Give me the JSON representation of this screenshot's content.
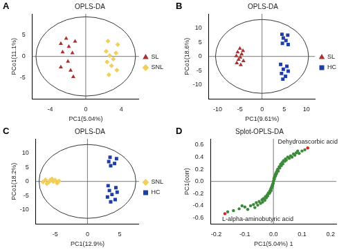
{
  "chart_data": [
    {
      "panel": "A",
      "type": "scatter",
      "title": "OPLS-DA",
      "x_label": "PC1(5.04%)",
      "y_label": "PCo1(11.1%)",
      "xlim": [
        -6,
        6
      ],
      "ylim": [
        -10,
        10
      ],
      "xticks": [
        -4,
        0,
        4
      ],
      "yticks": [
        -5,
        0,
        5
      ],
      "legend": "right",
      "ellipse": {
        "center": [
          0,
          0
        ],
        "x_radius": 5.6,
        "y_radius": 9.3
      },
      "reference_lines": {
        "x": 0,
        "y": 0
      },
      "series": [
        {
          "name": "SL",
          "color": "#a83232",
          "marker": "triangle",
          "x": [
            -2.2,
            -1.2,
            -2.8,
            -1.9,
            -2.6,
            -1.5,
            -2.0,
            -2.8,
            -1.7,
            -1.4
          ],
          "values": [
            4.2,
            3.5,
            3.0,
            2.3,
            1.0,
            0.8,
            -1.2,
            -2.5,
            -3.3,
            -4.8
          ]
        },
        {
          "name": "SNL",
          "color": "#f2cf5b",
          "marker": "diamond",
          "x": [
            2.5,
            3.6,
            2.3,
            3.4,
            2.7,
            3.1,
            2.4,
            2.9,
            3.5,
            2.6
          ],
          "values": [
            3.6,
            2.8,
            1.2,
            0.8,
            0.2,
            -0.6,
            -1.3,
            -2.2,
            -3.2,
            -4.3
          ]
        }
      ]
    },
    {
      "panel": "B",
      "type": "scatter",
      "title": "OPLS-DA",
      "x_label": "PC1(9.61%)",
      "y_label": "PCo1(18.6%)",
      "xlim": [
        -12,
        12
      ],
      "ylim": [
        -15,
        15
      ],
      "xticks": [
        -10,
        -5,
        0,
        5,
        10
      ],
      "yticks": [
        -10,
        -5,
        0,
        5,
        10
      ],
      "legend": "right",
      "ellipse": {
        "center": [
          0,
          0
        ],
        "x_radius": 10.5,
        "y_radius": 13
      },
      "reference_lines": {
        "x": 0,
        "y": 0
      },
      "series": [
        {
          "name": "SL",
          "color": "#a83232",
          "marker": "triangle",
          "x": [
            -5.0,
            -4.3,
            -5.5,
            -4.6,
            -5.8,
            -4.9,
            -5.3,
            -4.2,
            -5.7,
            -4.8
          ],
          "values": [
            2.8,
            2.0,
            1.5,
            0.8,
            0.2,
            -0.3,
            -1.1,
            -1.6,
            -2.3,
            -3.0
          ]
        },
        {
          "name": "HC",
          "color": "#1f3fa8",
          "marker": "square",
          "x": [
            4.5,
            5.8,
            4.8,
            5.4,
            4.6,
            5.9,
            4.2,
            5.6,
            4.8,
            5.9,
            4.4,
            5.3,
            4.7
          ],
          "values": [
            7.8,
            7.5,
            6.5,
            5.6,
            4.6,
            4.2,
            -2.8,
            -3.5,
            -4.5,
            -5.2,
            -6.0,
            -7.0,
            -8.0
          ]
        }
      ]
    },
    {
      "panel": "C",
      "type": "scatter",
      "title": "OPLS-DA",
      "x_label": "PC1(12.9%)",
      "y_label": "PCo1(18.2%)",
      "xlim": [
        -8,
        8
      ],
      "ylim": [
        -15,
        15
      ],
      "xticks": [
        -5,
        0,
        5
      ],
      "yticks": [
        -10,
        -5,
        0,
        5,
        10
      ],
      "legend": "right",
      "ellipse": {
        "center": [
          0,
          0
        ],
        "x_radius": 7.5,
        "y_radius": 13
      },
      "reference_lines": {
        "x": 0,
        "y": 0
      },
      "series": [
        {
          "name": "SNL",
          "color": "#f2cf5b",
          "marker": "diamond",
          "x": [
            -6.5,
            -5.8,
            -5.0,
            -4.4,
            -6.9,
            -6.0,
            -5.3,
            -4.7,
            -6.3,
            -5.5
          ],
          "values": [
            0.6,
            0.4,
            0.5,
            0.2,
            -0.2,
            -0.3,
            -0.1,
            -0.6,
            -0.8,
            0.9
          ]
        },
        {
          "name": "HC",
          "color": "#1f3fa8",
          "marker": "square",
          "x": [
            3.5,
            4.5,
            3.3,
            4.2,
            3.6,
            3.2,
            4.4,
            3.4,
            4.6,
            3.8,
            3.1,
            4.3,
            3.6
          ],
          "values": [
            8.5,
            8.0,
            7.0,
            6.3,
            5.5,
            -1.5,
            -2.2,
            -3.2,
            -3.8,
            -4.6,
            -5.5,
            -6.4,
            -7.2
          ]
        }
      ]
    },
    {
      "panel": "D",
      "type": "scatter",
      "title": "Splot-OPLS-DA",
      "x_label": "PC1(5.04%) 1",
      "y_label": "PC1(corr)",
      "xlim": [
        -0.22,
        0.22
      ],
      "ylim": [
        -0.7,
        0.7
      ],
      "xticks": [
        -0.2,
        -0.1,
        {
          "value": 0,
          "label": "0.0"
        },
        0.1,
        0.2
      ],
      "yticks": [
        -0.6,
        -0.4,
        -0.2,
        {
          "value": 0,
          "label": "0.0"
        },
        0.2,
        0.4,
        0.6
      ],
      "reference_lines": {
        "x": 0,
        "y": 0
      },
      "annotations": [
        {
          "text": "Dehydroascorbic acid",
          "x": 0.12,
          "y": 0.55
        },
        {
          "text": "L-alpha-aminobutyric acid",
          "x": -0.17,
          "y": -0.53
        }
      ],
      "series": [
        {
          "color": "#3a8a3a",
          "marker": "circle",
          "x": [
            -0.16,
            -0.14,
            -0.12,
            -0.11,
            -0.1,
            -0.09,
            -0.08,
            -0.07,
            -0.065,
            -0.06,
            -0.055,
            -0.05,
            -0.045,
            -0.04,
            -0.038,
            -0.035,
            -0.03,
            -0.028,
            -0.025,
            -0.022,
            -0.02,
            -0.018,
            -0.015,
            -0.013,
            -0.012,
            -0.01,
            -0.009,
            -0.008,
            -0.007,
            -0.006,
            -0.005,
            -0.004,
            -0.003,
            -0.002,
            -0.001,
            0.0,
            0.001,
            0.002,
            0.003,
            0.004,
            0.005,
            0.006,
            0.007,
            0.008,
            0.01,
            0.011,
            0.013,
            0.015,
            0.017,
            0.02,
            0.022,
            0.025,
            0.028,
            0.03,
            0.033,
            0.035,
            0.04,
            0.042,
            0.045,
            0.05,
            0.055,
            0.06,
            0.065,
            0.07,
            0.075,
            0.08,
            0.085,
            0.09,
            0.1,
            0.11
          ],
          "values": [
            -0.5,
            -0.48,
            -0.45,
            -0.4,
            -0.42,
            -0.46,
            -0.4,
            -0.38,
            -0.43,
            -0.35,
            -0.39,
            -0.33,
            -0.36,
            -0.3,
            -0.34,
            -0.28,
            -0.31,
            -0.25,
            -0.27,
            -0.22,
            -0.24,
            -0.19,
            -0.2,
            -0.16,
            -0.18,
            -0.14,
            -0.12,
            -0.15,
            -0.1,
            -0.11,
            -0.08,
            -0.06,
            -0.07,
            -0.04,
            -0.03,
            0.0,
            0.02,
            0.05,
            0.04,
            0.07,
            0.09,
            0.08,
            0.12,
            0.1,
            0.15,
            0.13,
            0.18,
            0.2,
            0.17,
            0.24,
            0.22,
            0.28,
            0.26,
            0.31,
            0.29,
            0.34,
            0.33,
            0.37,
            0.35,
            0.4,
            0.38,
            0.42,
            0.4,
            0.45,
            0.43,
            0.47,
            0.5,
            0.46,
            0.5,
            0.52
          ]
        },
        {
          "color": "#e02020",
          "marker": "circle",
          "x": [
            0.12,
            -0.17
          ],
          "values": [
            0.55,
            -0.53
          ]
        }
      ]
    }
  ]
}
